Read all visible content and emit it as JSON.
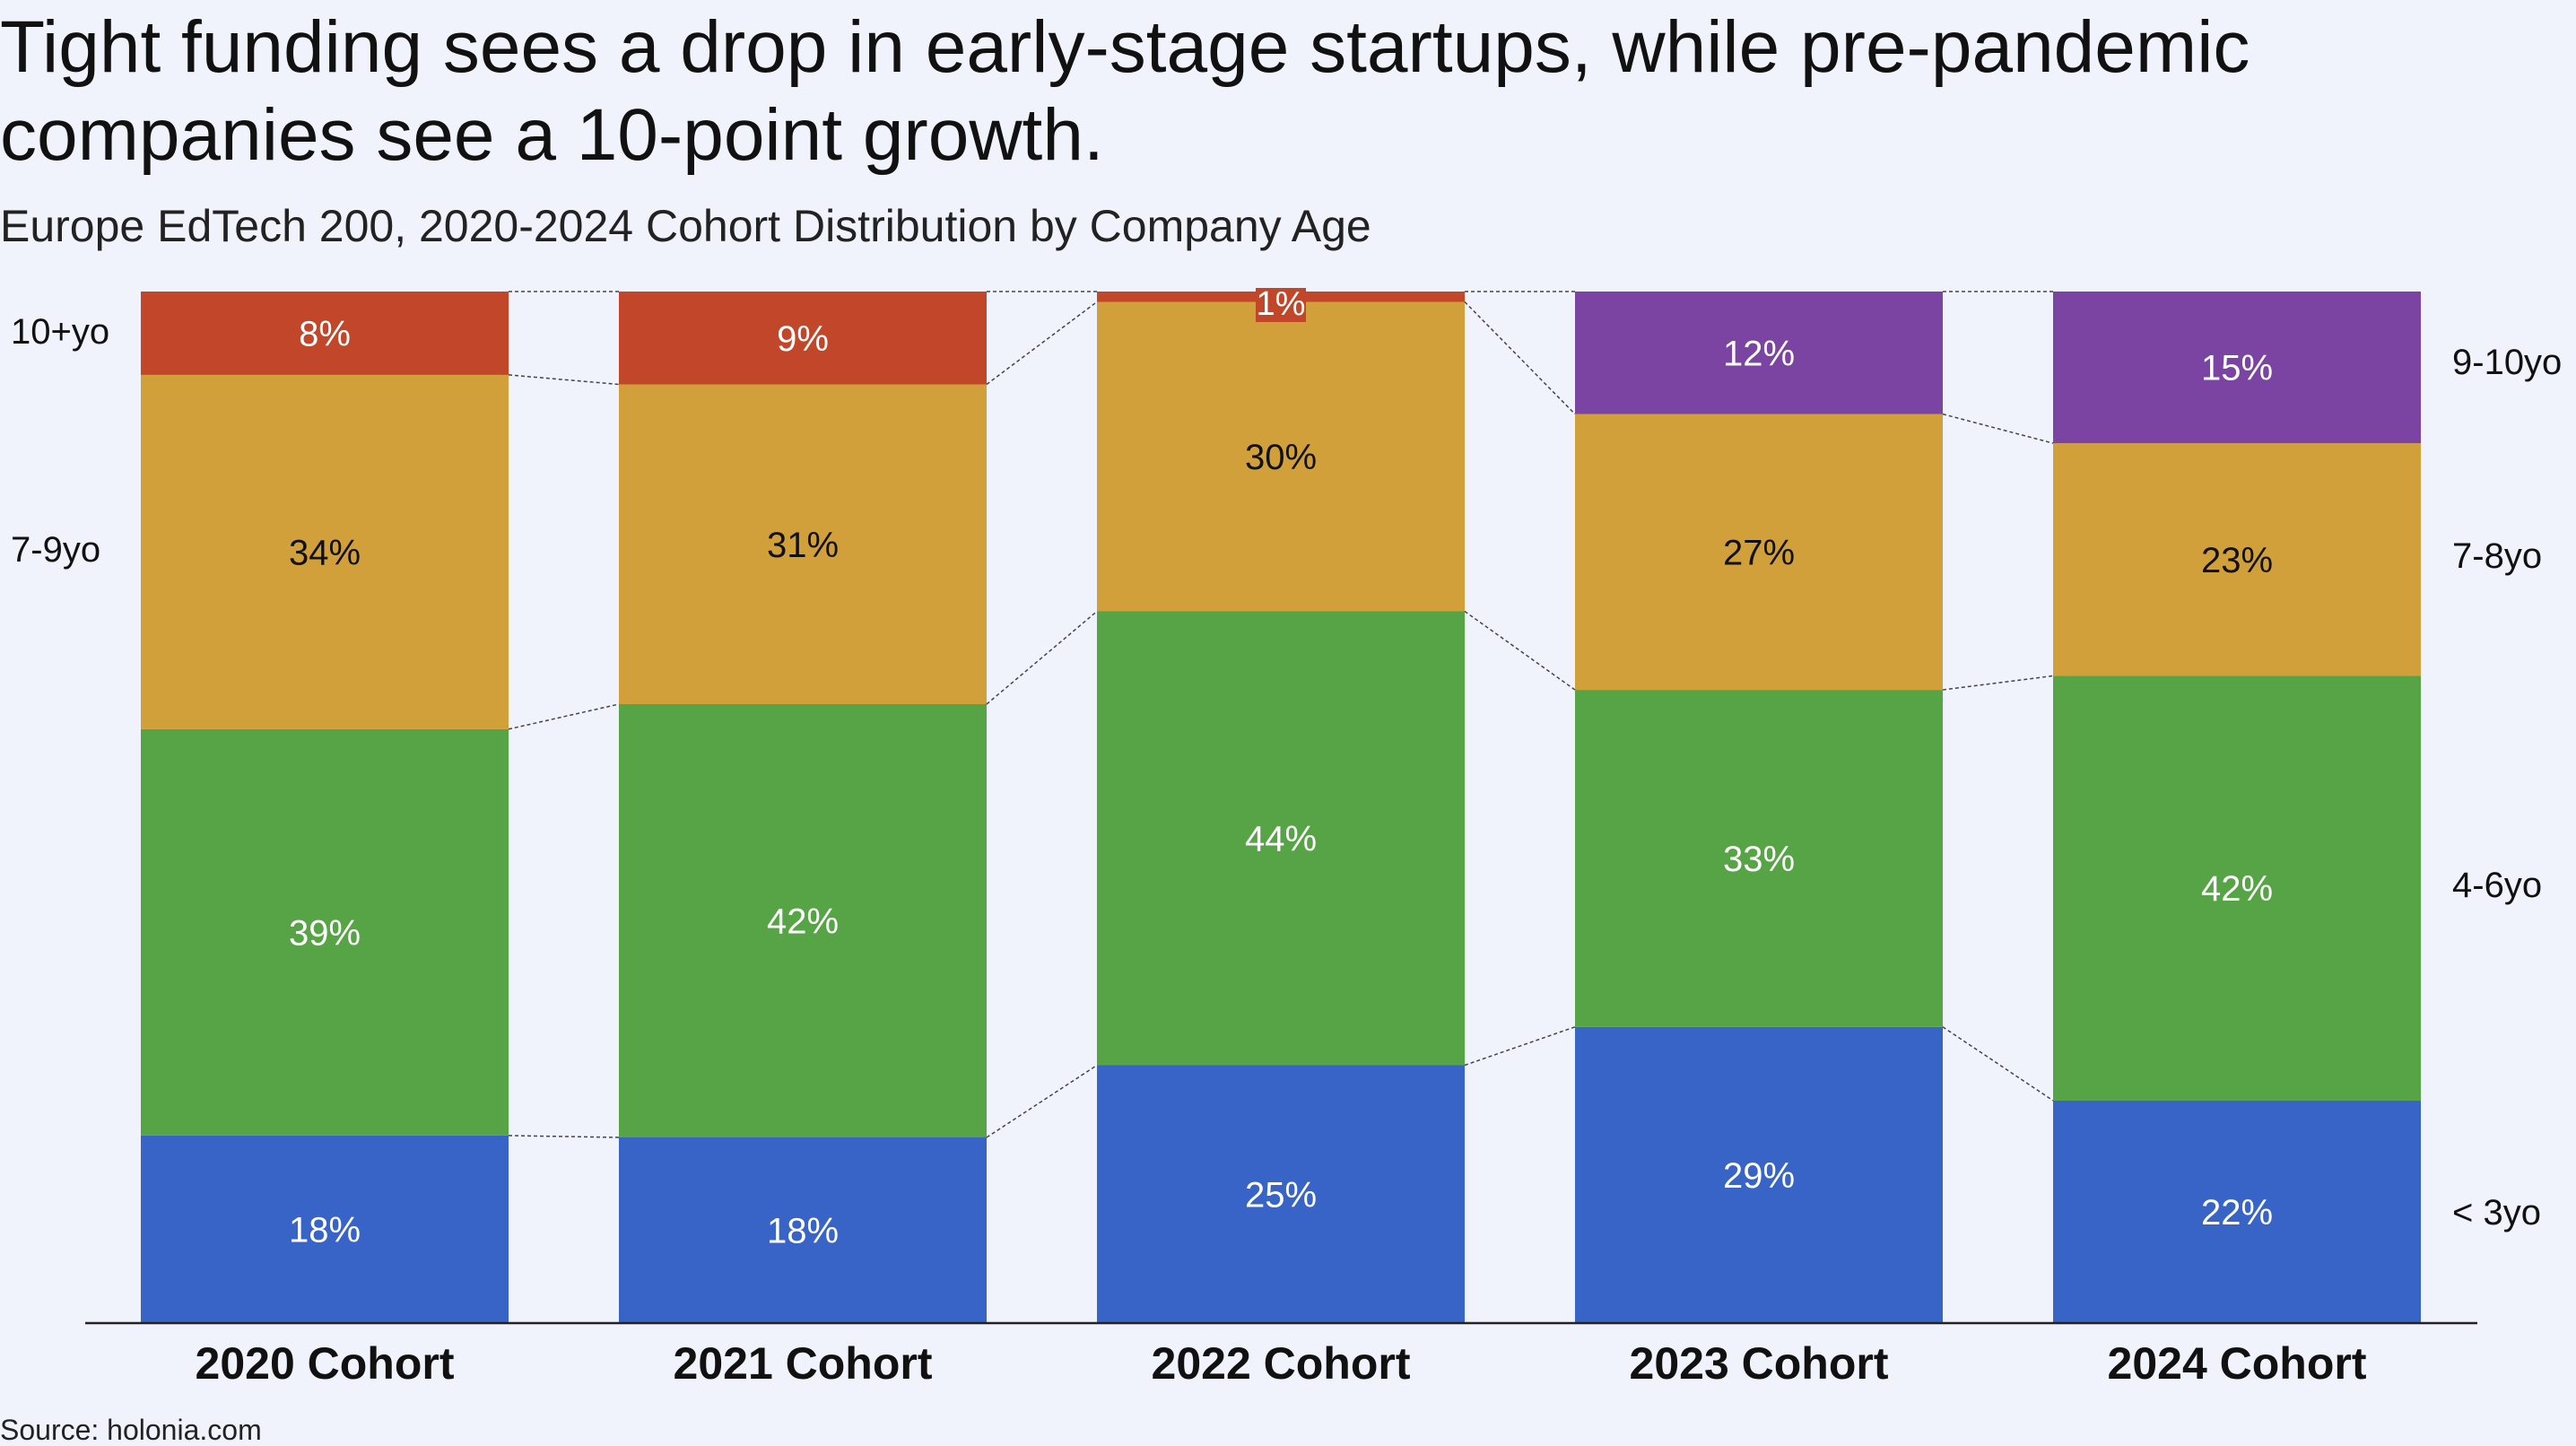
{
  "title": "Tight funding sees a drop in early-stage startups, while pre-pandemic companies see a 10-point growth.",
  "subtitle": "Europe EdTech 200, 2020-2024 Cohort Distribution by Company Age",
  "source": "Source: holonia.com",
  "colors": {
    "under3": "#3864c8",
    "4to6": "#57a447",
    "7to9": "#d1a03a",
    "10plus": "#c24629",
    "9to10": "#7b44a3"
  },
  "chart_data": {
    "type": "bar",
    "stacked": true,
    "categories": [
      "2020 Cohort",
      "2021 Cohort",
      "2022 Cohort",
      "2023 Cohort",
      "2024 Cohort"
    ],
    "ylim": [
      0,
      100
    ],
    "unit": "%",
    "left_labels": [
      "10+yo",
      "7-9yo"
    ],
    "right_labels": [
      "9-10yo",
      "7-8yo",
      "4-6yo",
      "< 3yo"
    ],
    "segments": [
      {
        "label": "18%",
        "value": 18,
        "color_key": "under3"
      },
      {
        "label": "39%",
        "value": 39,
        "color_key": "4to6"
      },
      {
        "label": "34%",
        "value": 34,
        "color_key": "7to9"
      },
      {
        "label": "8%",
        "value": 8,
        "color_key": "10plus"
      }
    ],
    "bars": [
      [
        {
          "value": 18,
          "label": "18%",
          "color_key": "under3"
        },
        {
          "value": 39,
          "label": "39%",
          "color_key": "4to6"
        },
        {
          "value": 34,
          "label": "34%",
          "color_key": "7to9"
        },
        {
          "value": 8,
          "label": "8%",
          "color_key": "10plus"
        }
      ],
      [
        {
          "value": 18,
          "label": "18%",
          "color_key": "under3"
        },
        {
          "value": 42,
          "label": "42%",
          "color_key": "4to6"
        },
        {
          "value": 31,
          "label": "31%",
          "color_key": "7to9"
        },
        {
          "value": 9,
          "label": "9%",
          "color_key": "10plus"
        }
      ],
      [
        {
          "value": 25,
          "label": "25%",
          "color_key": "under3"
        },
        {
          "value": 44,
          "label": "44%",
          "color_key": "4to6"
        },
        {
          "value": 30,
          "label": "30%",
          "color_key": "7to9"
        },
        {
          "value": 1,
          "label": "1%",
          "color_key": "10plus"
        }
      ],
      [
        {
          "value": 29,
          "label": "29%",
          "color_key": "under3"
        },
        {
          "value": 33,
          "label": "33%",
          "color_key": "4to6"
        },
        {
          "value": 27,
          "label": "27%",
          "color_key": "7to9"
        },
        {
          "value": 12,
          "label": "12%",
          "color_key": "9to10"
        }
      ],
      [
        {
          "value": 22,
          "label": "22%",
          "color_key": "under3"
        },
        {
          "value": 42,
          "label": "42%",
          "color_key": "4to6"
        },
        {
          "value": 23,
          "label": "23%",
          "color_key": "7to9"
        },
        {
          "value": 15,
          "label": "15%",
          "color_key": "9to10"
        }
      ]
    ]
  }
}
